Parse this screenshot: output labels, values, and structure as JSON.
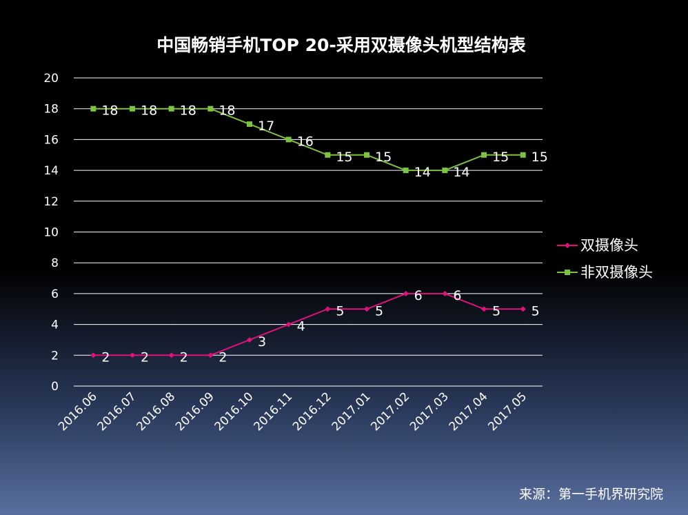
{
  "chart_data": {
    "type": "line",
    "title": "中国畅销手机TOP 20-采用双摄像头机型结构表",
    "categories": [
      "2016.06",
      "2016.07",
      "2016.08",
      "2016.09",
      "2016.10",
      "2016.11",
      "2016.12",
      "2017.01",
      "2017.02",
      "2017.03",
      "2017.04",
      "2017.05"
    ],
    "ylim": [
      0,
      20
    ],
    "yticks": [
      "0",
      "2",
      "4",
      "6",
      "8",
      "10",
      "12",
      "14",
      "16",
      "18",
      "20"
    ],
    "grid": true,
    "legend_position": "right",
    "series": [
      {
        "name": "双摄像头",
        "color": "#e0127a",
        "marker": "diamond",
        "values": [
          2,
          2,
          2,
          2,
          3,
          4,
          5,
          5,
          6,
          6,
          5,
          5
        ]
      },
      {
        "name": "非双摄像头",
        "color": "#7ec241",
        "marker": "square",
        "values": [
          18,
          18,
          18,
          18,
          17,
          16,
          15,
          15,
          14,
          14,
          15,
          15
        ]
      }
    ],
    "data_labels": [
      [
        "2",
        "2",
        "2",
        "2",
        "3",
        "4",
        "5",
        "5",
        "6",
        "6",
        "5",
        "5"
      ],
      [
        "18",
        "18",
        "18",
        "18",
        "17",
        "16",
        "15",
        "15",
        "14",
        "14",
        "15",
        "15"
      ]
    ],
    "source": "来源：第一手机界研究院"
  }
}
